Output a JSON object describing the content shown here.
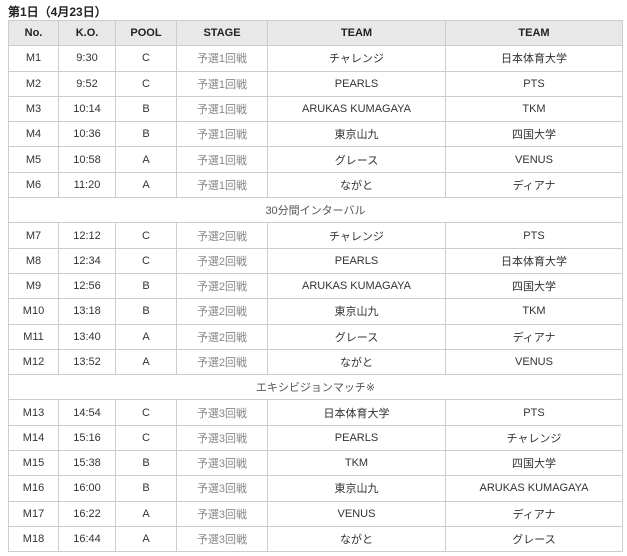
{
  "title": "第1日（4月23日）",
  "headers": [
    "No.",
    "K.O.",
    "POOL",
    "STAGE",
    "TEAM",
    "TEAM"
  ],
  "rows": [
    {
      "no": "M1",
      "ko": "9:30",
      "pool": "C",
      "stage": "予選1回戦",
      "team1": "チャレンジ",
      "team2": "日本体育大学"
    },
    {
      "no": "M2",
      "ko": "9:52",
      "pool": "C",
      "stage": "予選1回戦",
      "team1": "PEARLS",
      "team2": "PTS"
    },
    {
      "no": "M3",
      "ko": "10:14",
      "pool": "B",
      "stage": "予選1回戦",
      "team1": "ARUKAS KUMAGAYA",
      "team2": "TKM"
    },
    {
      "no": "M4",
      "ko": "10:36",
      "pool": "B",
      "stage": "予選1回戦",
      "team1": "東京山九",
      "team2": "四国大学"
    },
    {
      "no": "M5",
      "ko": "10:58",
      "pool": "A",
      "stage": "予選1回戦",
      "team1": "グレース",
      "team2": "VENUS"
    },
    {
      "no": "M6",
      "ko": "11:20",
      "pool": "A",
      "stage": "予選1回戦",
      "team1": "ながと",
      "team2": "ディアナ"
    },
    {
      "note": "30分間インターバル"
    },
    {
      "no": "M7",
      "ko": "12:12",
      "pool": "C",
      "stage": "予選2回戦",
      "team1": "チャレンジ",
      "team2": "PTS"
    },
    {
      "no": "M8",
      "ko": "12:34",
      "pool": "C",
      "stage": "予選2回戦",
      "team1": "PEARLS",
      "team2": "日本体育大学"
    },
    {
      "no": "M9",
      "ko": "12:56",
      "pool": "B",
      "stage": "予選2回戦",
      "team1": "ARUKAS KUMAGAYA",
      "team2": "四国大学"
    },
    {
      "no": "M10",
      "ko": "13:18",
      "pool": "B",
      "stage": "予選2回戦",
      "team1": "東京山九",
      "team2": "TKM"
    },
    {
      "no": "M11",
      "ko": "13:40",
      "pool": "A",
      "stage": "予選2回戦",
      "team1": "グレース",
      "team2": "ディアナ"
    },
    {
      "no": "M12",
      "ko": "13:52",
      "pool": "A",
      "stage": "予選2回戦",
      "team1": "ながと",
      "team2": "VENUS"
    },
    {
      "note": "エキシビジョンマッチ※"
    },
    {
      "no": "M13",
      "ko": "14:54",
      "pool": "C",
      "stage": "予選3回戦",
      "team1": "日本体育大学",
      "team2": "PTS"
    },
    {
      "no": "M14",
      "ko": "15:16",
      "pool": "C",
      "stage": "予選3回戦",
      "team1": "PEARLS",
      "team2": "チャレンジ"
    },
    {
      "no": "M15",
      "ko": "15:38",
      "pool": "B",
      "stage": "予選3回戦",
      "team1": "TKM",
      "team2": "四国大学"
    },
    {
      "no": "M16",
      "ko": "16:00",
      "pool": "B",
      "stage": "予選3回戦",
      "team1": "東京山九",
      "team2": "ARUKAS KUMAGAYA"
    },
    {
      "no": "M17",
      "ko": "16:22",
      "pool": "A",
      "stage": "予選3回戦",
      "team1": "VENUS",
      "team2": "ディアナ"
    },
    {
      "no": "M18",
      "ko": "16:44",
      "pool": "A",
      "stage": "予選3回戦",
      "team1": "ながと",
      "team2": "グレース"
    }
  ]
}
